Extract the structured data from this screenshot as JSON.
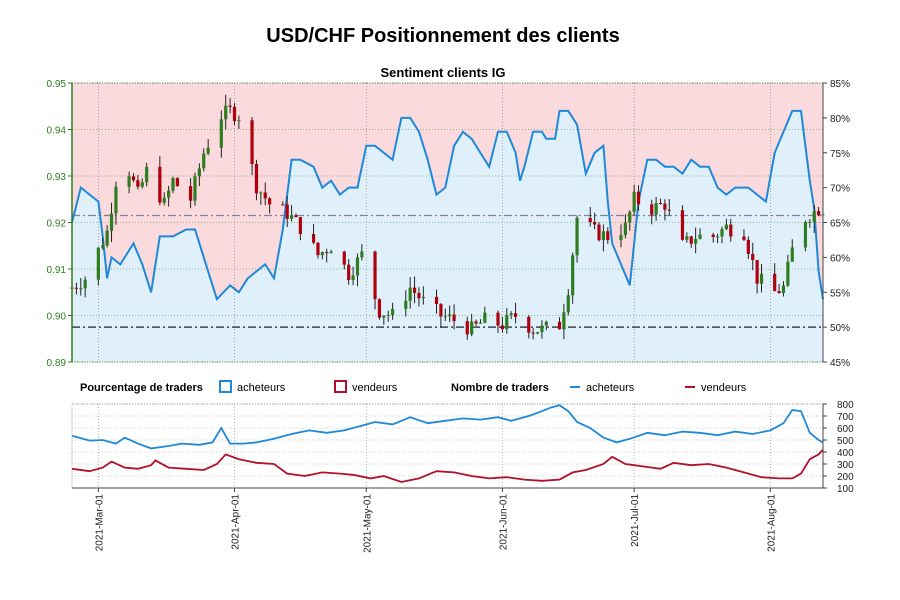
{
  "title": "USD/CHF Positionnement des clients",
  "subtitle": "Sentiment clients IG",
  "colors": {
    "up": "#2e7d1f",
    "down": "#b0000e",
    "buyers": "#1f88d8",
    "sellers": "#b0102a",
    "buyers_fill": "#e0f0fb",
    "sellers_fill": "#fadadd",
    "left_axis": "#2e7d1f"
  },
  "legend": {
    "pct_label": "Pourcentage de traders",
    "pct_buyers": "acheteurs",
    "pct_sellers": "vendeurs",
    "count_label": "Nombre de traders",
    "count_buyers": "acheteurs",
    "count_sellers": "vendeurs"
  },
  "chart_data": [
    {
      "type": "candlestick",
      "title": "Sentiment clients IG",
      "y_left_lim": [
        0.89,
        0.95
      ],
      "y_left_ticks": [
        "0.89",
        "0.90",
        "0.91",
        "0.92",
        "0.93",
        "0.94",
        "0.95"
      ],
      "y_right_lim": [
        45,
        85
      ],
      "y_right_ticks": [
        "45%",
        "50%",
        "55%",
        "60%",
        "65%",
        "70%",
        "75%",
        "80%",
        "85%"
      ],
      "x_range": [
        "2021-02-23",
        "2021-08-13"
      ],
      "reference_lines": [
        0.9215,
        0.8975
      ],
      "price_anchors": [
        [
          "2021-02-23",
          0.906
        ],
        [
          "2021-02-26",
          0.908
        ],
        [
          "2021-03-03",
          0.918
        ],
        [
          "2021-03-05",
          0.929
        ],
        [
          "2021-03-08",
          0.931
        ],
        [
          "2021-03-10",
          0.926
        ],
        [
          "2021-03-12",
          0.931
        ],
        [
          "2021-03-16",
          0.924
        ],
        [
          "2021-03-18",
          0.929
        ],
        [
          "2021-03-22",
          0.925
        ],
        [
          "2021-03-25",
          0.935
        ],
        [
          "2021-03-29",
          0.943
        ],
        [
          "2021-03-31",
          0.944
        ],
        [
          "2021-04-02",
          0.943
        ],
        [
          "2021-04-06",
          0.928
        ],
        [
          "2021-04-09",
          0.924
        ],
        [
          "2021-04-13",
          0.922
        ],
        [
          "2021-04-16",
          0.919
        ],
        [
          "2021-04-20",
          0.913
        ],
        [
          "2021-04-23",
          0.915
        ],
        [
          "2021-04-27",
          0.909
        ],
        [
          "2021-04-30",
          0.913
        ],
        [
          "2021-05-04",
          0.901
        ],
        [
          "2021-05-07",
          0.9
        ],
        [
          "2021-05-11",
          0.906
        ],
        [
          "2021-05-14",
          0.903
        ],
        [
          "2021-05-18",
          0.9
        ],
        [
          "2021-05-21",
          0.899
        ],
        [
          "2021-05-25",
          0.897
        ],
        [
          "2021-05-28",
          0.899
        ],
        [
          "2021-06-01",
          0.898
        ],
        [
          "2021-06-04",
          0.9
        ],
        [
          "2021-06-08",
          0.897
        ],
        [
          "2021-06-10",
          0.897
        ],
        [
          "2021-06-14",
          0.898
        ],
        [
          "2021-06-16",
          0.906
        ],
        [
          "2021-06-18",
          0.921
        ],
        [
          "2021-06-22",
          0.918
        ],
        [
          "2021-06-25",
          0.917
        ],
        [
          "2021-06-29",
          0.919
        ],
        [
          "2021-07-01",
          0.925
        ],
        [
          "2021-07-05",
          0.923
        ],
        [
          "2021-07-08",
          0.924
        ],
        [
          "2021-07-12",
          0.915
        ],
        [
          "2021-07-15",
          0.917
        ],
        [
          "2021-07-19",
          0.917
        ],
        [
          "2021-07-22",
          0.919
        ],
        [
          "2021-07-26",
          0.918
        ],
        [
          "2021-07-29",
          0.908
        ],
        [
          "2021-08-02",
          0.905
        ],
        [
          "2021-08-04",
          0.906
        ],
        [
          "2021-08-06",
          0.914
        ],
        [
          "2021-08-09",
          0.921
        ],
        [
          "2021-08-12",
          0.923
        ]
      ],
      "buyers_pct": [
        [
          "2021-02-23",
          65
        ],
        [
          "2021-02-25",
          70
        ],
        [
          "2021-02-27",
          69
        ],
        [
          "2021-03-01",
          68
        ],
        [
          "2021-03-02",
          63
        ],
        [
          "2021-03-03",
          57
        ],
        [
          "2021-03-04",
          60
        ],
        [
          "2021-03-06",
          59
        ],
        [
          "2021-03-09",
          62
        ],
        [
          "2021-03-11",
          59
        ],
        [
          "2021-03-13",
          55
        ],
        [
          "2021-03-15",
          63
        ],
        [
          "2021-03-18",
          63
        ],
        [
          "2021-03-21",
          64
        ],
        [
          "2021-03-23",
          64
        ],
        [
          "2021-03-24",
          62
        ],
        [
          "2021-03-26",
          58
        ],
        [
          "2021-03-28",
          54
        ],
        [
          "2021-03-31",
          56
        ],
        [
          "2021-04-02",
          55
        ],
        [
          "2021-04-04",
          57
        ],
        [
          "2021-04-06",
          58
        ],
        [
          "2021-04-08",
          59
        ],
        [
          "2021-04-10",
          57
        ],
        [
          "2021-04-12",
          64
        ],
        [
          "2021-04-14",
          74
        ],
        [
          "2021-04-16",
          74
        ],
        [
          "2021-04-19",
          73
        ],
        [
          "2021-04-21",
          70
        ],
        [
          "2021-04-23",
          71
        ],
        [
          "2021-04-25",
          69
        ],
        [
          "2021-04-27",
          70
        ],
        [
          "2021-04-29",
          70
        ],
        [
          "2021-05-01",
          76
        ],
        [
          "2021-05-03",
          76
        ],
        [
          "2021-05-05",
          75
        ],
        [
          "2021-05-07",
          74
        ],
        [
          "2021-05-09",
          80
        ],
        [
          "2021-05-11",
          80
        ],
        [
          "2021-05-13",
          78
        ],
        [
          "2021-05-15",
          74
        ],
        [
          "2021-05-17",
          69
        ],
        [
          "2021-05-19",
          70
        ],
        [
          "2021-05-21",
          76
        ],
        [
          "2021-05-23",
          78
        ],
        [
          "2021-05-25",
          77
        ],
        [
          "2021-05-27",
          75
        ],
        [
          "2021-05-29",
          73
        ],
        [
          "2021-05-31",
          78
        ],
        [
          "2021-06-02",
          78
        ],
        [
          "2021-06-04",
          75
        ],
        [
          "2021-06-05",
          71
        ],
        [
          "2021-06-06",
          73
        ],
        [
          "2021-06-08",
          78
        ],
        [
          "2021-06-10",
          78
        ],
        [
          "2021-06-11",
          77
        ],
        [
          "2021-06-13",
          77
        ],
        [
          "2021-06-14",
          81
        ],
        [
          "2021-06-16",
          81
        ],
        [
          "2021-06-18",
          79
        ],
        [
          "2021-06-20",
          72
        ],
        [
          "2021-06-22",
          75
        ],
        [
          "2021-06-24",
          76
        ],
        [
          "2021-06-25",
          68
        ],
        [
          "2021-06-26",
          62
        ],
        [
          "2021-06-28",
          59
        ],
        [
          "2021-06-30",
          56
        ],
        [
          "2021-07-02",
          68
        ],
        [
          "2021-07-04",
          74
        ],
        [
          "2021-07-06",
          74
        ],
        [
          "2021-07-08",
          73
        ],
        [
          "2021-07-10",
          73
        ],
        [
          "2021-07-12",
          72
        ],
        [
          "2021-07-14",
          74
        ],
        [
          "2021-07-16",
          73
        ],
        [
          "2021-07-18",
          73
        ],
        [
          "2021-07-20",
          70
        ],
        [
          "2021-07-22",
          69
        ],
        [
          "2021-07-24",
          70
        ],
        [
          "2021-07-27",
          70
        ],
        [
          "2021-07-29",
          69
        ],
        [
          "2021-07-31",
          68
        ],
        [
          "2021-08-02",
          75
        ],
        [
          "2021-08-04",
          78
        ],
        [
          "2021-08-06",
          81
        ],
        [
          "2021-08-08",
          81
        ],
        [
          "2021-08-10",
          71
        ],
        [
          "2021-08-11",
          67
        ],
        [
          "2021-08-12",
          58
        ],
        [
          "2021-08-13",
          54
        ]
      ]
    },
    {
      "type": "line",
      "y_lim": [
        100,
        800
      ],
      "y_ticks": [
        "100",
        "200",
        "300",
        "400",
        "500",
        "600",
        "700",
        "800"
      ],
      "x_ticks": [
        "2021-Mar-01",
        "2021-Apr-01",
        "2021-May-01",
        "2021-Jun-01",
        "2021-Jul-01",
        "2021-Aug-01"
      ],
      "buyers_count": [
        [
          "2021-02-23",
          535
        ],
        [
          "2021-02-27",
          495
        ],
        [
          "2021-03-02",
          500
        ],
        [
          "2021-03-05",
          470
        ],
        [
          "2021-03-07",
          520
        ],
        [
          "2021-03-10",
          470
        ],
        [
          "2021-03-13",
          430
        ],
        [
          "2021-03-17",
          450
        ],
        [
          "2021-03-20",
          470
        ],
        [
          "2021-03-24",
          460
        ],
        [
          "2021-03-27",
          480
        ],
        [
          "2021-03-29",
          600
        ],
        [
          "2021-03-31",
          470
        ],
        [
          "2021-04-03",
          470
        ],
        [
          "2021-04-06",
          480
        ],
        [
          "2021-04-10",
          510
        ],
        [
          "2021-04-14",
          550
        ],
        [
          "2021-04-18",
          580
        ],
        [
          "2021-04-22",
          560
        ],
        [
          "2021-04-26",
          580
        ],
        [
          "2021-04-30",
          620
        ],
        [
          "2021-05-03",
          650
        ],
        [
          "2021-05-07",
          630
        ],
        [
          "2021-05-11",
          690
        ],
        [
          "2021-05-15",
          640
        ],
        [
          "2021-05-19",
          660
        ],
        [
          "2021-05-23",
          680
        ],
        [
          "2021-05-27",
          670
        ],
        [
          "2021-05-31",
          690
        ],
        [
          "2021-06-03",
          660
        ],
        [
          "2021-06-07",
          700
        ],
        [
          "2021-06-10",
          740
        ],
        [
          "2021-06-12",
          770
        ],
        [
          "2021-06-14",
          790
        ],
        [
          "2021-06-16",
          740
        ],
        [
          "2021-06-18",
          650
        ],
        [
          "2021-06-21",
          600
        ],
        [
          "2021-06-24",
          520
        ],
        [
          "2021-06-27",
          480
        ],
        [
          "2021-06-30",
          510
        ],
        [
          "2021-07-04",
          560
        ],
        [
          "2021-07-08",
          540
        ],
        [
          "2021-07-12",
          570
        ],
        [
          "2021-07-16",
          560
        ],
        [
          "2021-07-20",
          540
        ],
        [
          "2021-07-24",
          570
        ],
        [
          "2021-07-28",
          550
        ],
        [
          "2021-08-01",
          580
        ],
        [
          "2021-08-04",
          640
        ],
        [
          "2021-08-06",
          750
        ],
        [
          "2021-08-08",
          740
        ],
        [
          "2021-08-10",
          560
        ],
        [
          "2021-08-12",
          500
        ],
        [
          "2021-08-13",
          480
        ]
      ],
      "sellers_count": [
        [
          "2021-02-23",
          260
        ],
        [
          "2021-02-27",
          240
        ],
        [
          "2021-03-02",
          270
        ],
        [
          "2021-03-04",
          320
        ],
        [
          "2021-03-07",
          270
        ],
        [
          "2021-03-10",
          260
        ],
        [
          "2021-03-13",
          290
        ],
        [
          "2021-03-14",
          330
        ],
        [
          "2021-03-17",
          270
        ],
        [
          "2021-03-21",
          260
        ],
        [
          "2021-03-25",
          250
        ],
        [
          "2021-03-28",
          300
        ],
        [
          "2021-03-30",
          380
        ],
        [
          "2021-04-02",
          340
        ],
        [
          "2021-04-06",
          310
        ],
        [
          "2021-04-10",
          300
        ],
        [
          "2021-04-13",
          220
        ],
        [
          "2021-04-17",
          200
        ],
        [
          "2021-04-21",
          230
        ],
        [
          "2021-04-25",
          220
        ],
        [
          "2021-04-28",
          210
        ],
        [
          "2021-05-02",
          180
        ],
        [
          "2021-05-05",
          200
        ],
        [
          "2021-05-09",
          150
        ],
        [
          "2021-05-13",
          180
        ],
        [
          "2021-05-17",
          240
        ],
        [
          "2021-05-21",
          230
        ],
        [
          "2021-05-25",
          200
        ],
        [
          "2021-05-29",
          180
        ],
        [
          "2021-06-02",
          190
        ],
        [
          "2021-06-06",
          170
        ],
        [
          "2021-06-10",
          160
        ],
        [
          "2021-06-14",
          170
        ],
        [
          "2021-06-17",
          230
        ],
        [
          "2021-06-20",
          250
        ],
        [
          "2021-06-24",
          300
        ],
        [
          "2021-06-26",
          360
        ],
        [
          "2021-06-29",
          300
        ],
        [
          "2021-07-03",
          280
        ],
        [
          "2021-07-07",
          260
        ],
        [
          "2021-07-10",
          310
        ],
        [
          "2021-07-14",
          290
        ],
        [
          "2021-07-18",
          300
        ],
        [
          "2021-07-22",
          270
        ],
        [
          "2021-07-26",
          230
        ],
        [
          "2021-07-30",
          190
        ],
        [
          "2021-08-03",
          180
        ],
        [
          "2021-08-06",
          180
        ],
        [
          "2021-08-08",
          220
        ],
        [
          "2021-08-10",
          340
        ],
        [
          "2021-08-12",
          380
        ],
        [
          "2021-08-13",
          420
        ]
      ]
    }
  ]
}
